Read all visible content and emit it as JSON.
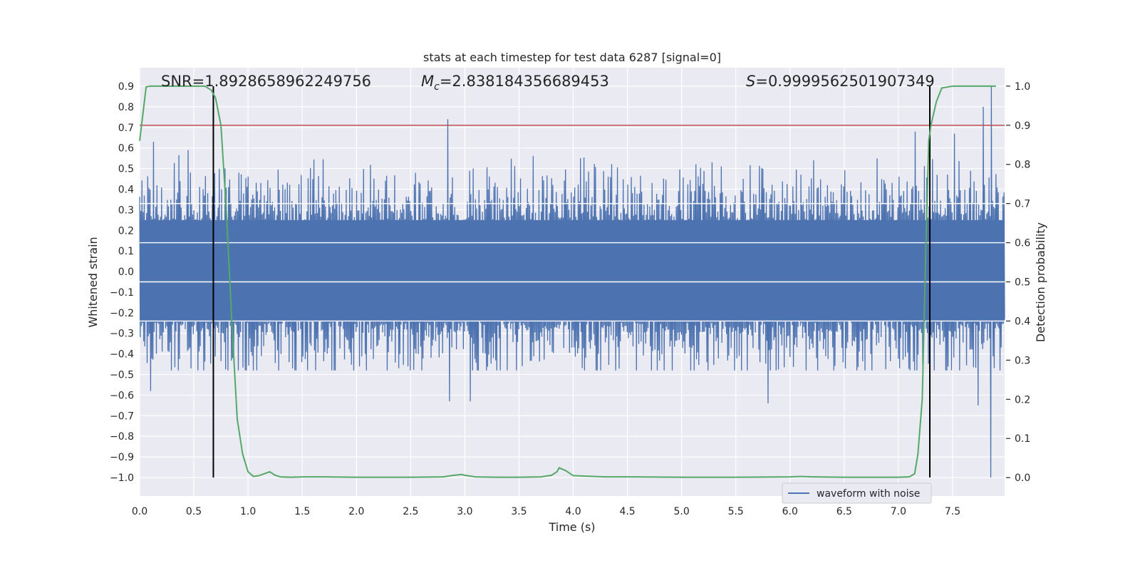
{
  "chart_data": {
    "type": "line",
    "title": "stats at each timestep for test data 6287 [signal=0]",
    "xlabel": "Time (s)",
    "ylabel": "Whitened strain",
    "y2label": "Detection probability",
    "xlim": [
      0.0,
      7.98
    ],
    "ylim": [
      -1.09,
      0.99
    ],
    "y2lim": [
      -0.047,
      1.047
    ],
    "x_ticks": [
      0.0,
      0.5,
      1.0,
      1.5,
      2.0,
      2.5,
      3.0,
      3.5,
      4.0,
      4.5,
      5.0,
      5.5,
      6.0,
      6.5,
      7.0,
      7.5
    ],
    "x_tick_labels": [
      "0.0",
      "0.5",
      "1.0",
      "1.5",
      "2.0",
      "2.5",
      "3.0",
      "3.5",
      "4.0",
      "4.5",
      "5.0",
      "5.5",
      "6.0",
      "6.5",
      "7.0",
      "7.5"
    ],
    "y_ticks": [
      0.9,
      0.8,
      0.7,
      0.6,
      0.5,
      0.4,
      0.3,
      0.2,
      0.1,
      0.0,
      -0.1,
      -0.2,
      -0.3,
      -0.4,
      -0.5,
      -0.6,
      -0.7,
      -0.8,
      -0.9,
      -1.0
    ],
    "y_tick_labels": [
      "0.9",
      "0.8",
      "0.7",
      "0.6",
      "0.5",
      "0.4",
      "0.3",
      "0.2",
      "0.1",
      "0.0",
      "−0.1",
      "−0.2",
      "−0.3",
      "−0.4",
      "−0.5",
      "−0.6",
      "−0.7",
      "−0.8",
      "−0.9",
      "−1.0"
    ],
    "y2_ticks": [
      1.0,
      0.9,
      0.8,
      0.7,
      0.6,
      0.5,
      0.4,
      0.3,
      0.2,
      0.1,
      0.0
    ],
    "y2_tick_labels": [
      "1.0",
      "0.9",
      "0.8",
      "0.7",
      "0.6",
      "0.5",
      "0.4",
      "0.3",
      "0.2",
      "0.1",
      "0.0"
    ],
    "annotations": {
      "snr_label": "SNR",
      "snr_value": "=1.8928658962249756",
      "mc_symbol": "M",
      "mc_subscript": "c",
      "mc_value": "=2.838184356689453",
      "s_symbol": "S",
      "s_value": "=0.9999562501907349"
    },
    "vertical_lines_x": [
      0.68,
      7.29
    ],
    "vertical_lines_range": [
      -1.0,
      0.9
    ],
    "threshold_probability": 0.9,
    "waveform": {
      "name": "waveform with noise",
      "color": "#4c72b0",
      "t_start": 0.0,
      "t_end": 7.98,
      "n_spikes": 1500,
      "core_band": [
        -0.24,
        0.25
      ],
      "typical_peak": 0.5,
      "max_positive": 0.9,
      "max_negative": -1.0,
      "notable_peaks": [
        {
          "t": 0.13,
          "v": 0.63
        },
        {
          "t": 0.45,
          "v": 0.59
        },
        {
          "t": 2.84,
          "v": 0.74
        },
        {
          "t": 7.16,
          "v": 0.68
        },
        {
          "t": 7.52,
          "v": 0.67
        },
        {
          "t": 7.78,
          "v": 0.8
        },
        {
          "t": 7.86,
          "v": 0.9
        },
        {
          "t": 0.1,
          "v": -0.58
        },
        {
          "t": 2.86,
          "v": -0.63
        },
        {
          "t": 3.05,
          "v": -0.63
        },
        {
          "t": 5.8,
          "v": -0.64
        },
        {
          "t": 7.73,
          "v": -0.65
        },
        {
          "t": 7.85,
          "v": -1.0
        }
      ]
    },
    "probability": {
      "name": "detection probability",
      "color": "#55a868",
      "t": [
        0.0,
        0.06,
        0.1,
        0.2,
        0.3,
        0.4,
        0.5,
        0.6,
        0.66,
        0.7,
        0.75,
        0.8,
        0.85,
        0.9,
        0.95,
        1.0,
        1.05,
        1.1,
        1.15,
        1.2,
        1.25,
        1.3,
        1.4,
        1.5,
        1.7,
        2.0,
        2.5,
        2.8,
        2.9,
        2.97,
        3.0,
        3.1,
        3.3,
        3.5,
        3.7,
        3.8,
        3.85,
        3.87,
        3.93,
        4.0,
        4.1,
        4.3,
        4.5,
        5.0,
        5.5,
        6.0,
        6.1,
        6.2,
        6.5,
        7.0,
        7.1,
        7.15,
        7.18,
        7.22,
        7.25,
        7.28,
        7.3,
        7.35,
        7.4,
        7.5,
        7.6,
        7.8,
        7.9
      ],
      "values": [
        0.86,
        0.998,
        1.0,
        1.0,
        1.0,
        1.0,
        1.0,
        1.0,
        0.99,
        0.97,
        0.9,
        0.68,
        0.4,
        0.15,
        0.06,
        0.015,
        0.003,
        0.005,
        0.01,
        0.015,
        0.006,
        0.002,
        0.001,
        0.002,
        0.002,
        0.001,
        0.001,
        0.002,
        0.006,
        0.008,
        0.006,
        0.002,
        0.001,
        0.001,
        0.002,
        0.006,
        0.015,
        0.025,
        0.018,
        0.005,
        0.004,
        0.002,
        0.002,
        0.001,
        0.001,
        0.002,
        0.003,
        0.002,
        0.001,
        0.001,
        0.002,
        0.01,
        0.06,
        0.2,
        0.55,
        0.86,
        0.9,
        0.96,
        0.995,
        1.0,
        1.0,
        1.0,
        1.0
      ]
    },
    "threshold_color": "#c44e52",
    "legend": {
      "position": "lower-right",
      "entries": [
        "waveform with noise"
      ]
    }
  }
}
